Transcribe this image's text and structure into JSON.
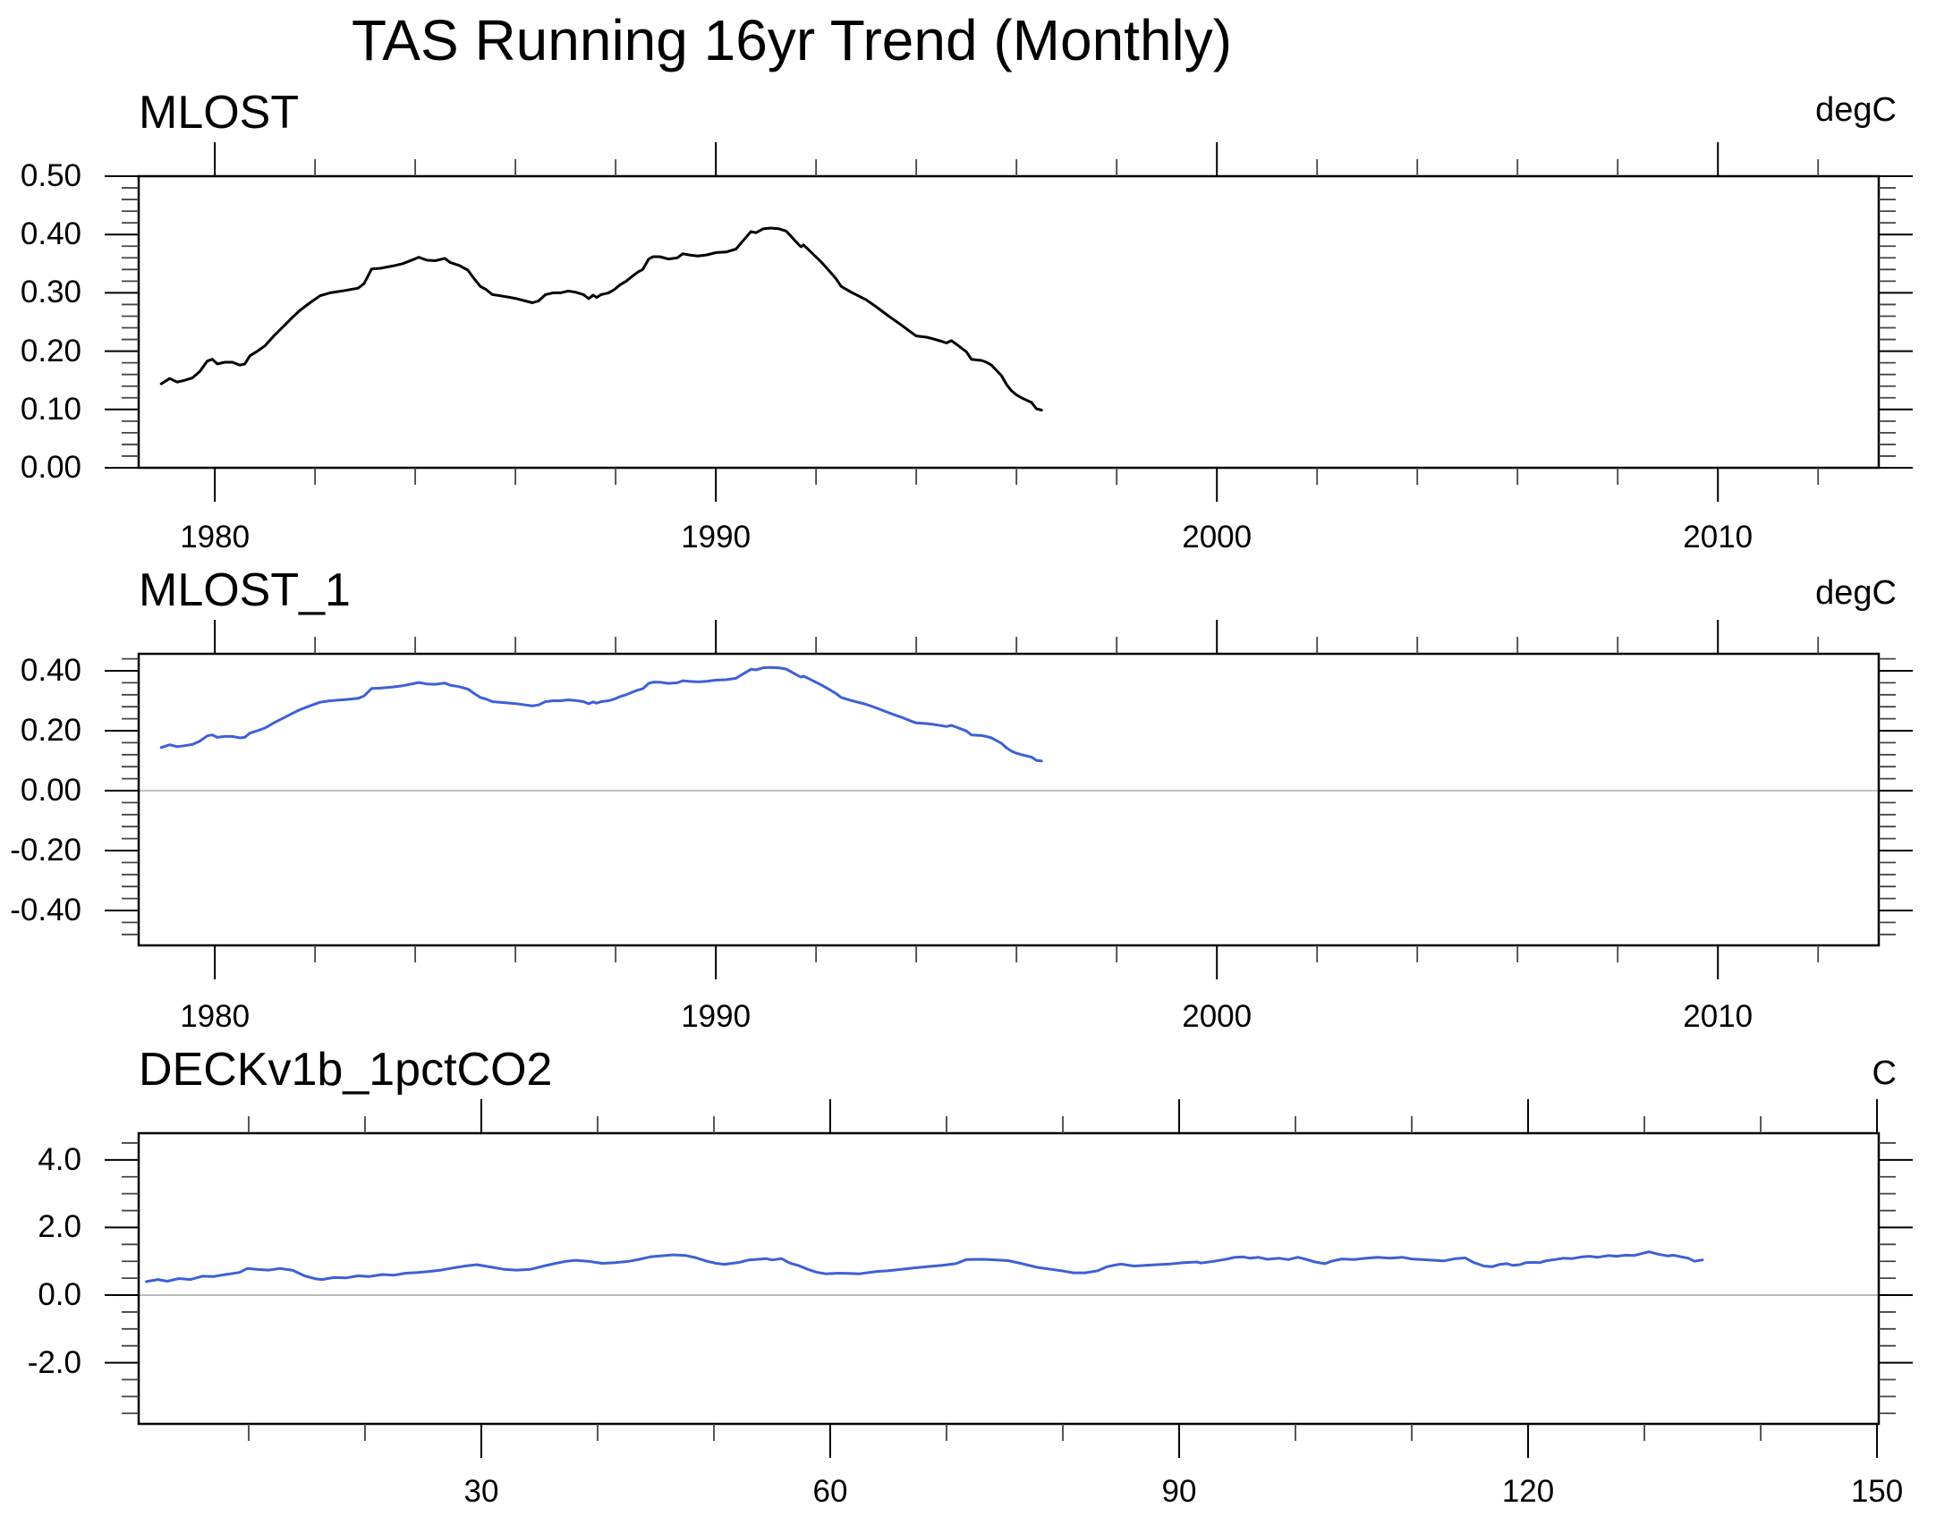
{
  "page_title": "TAS Running 16yr Trend (Monthly)",
  "colors": {
    "black_line": "#000000",
    "blue_line": "#3D60D5",
    "axis": "#000000",
    "minor_tick": "#444444",
    "zero_line": "#ababab"
  },
  "chart_data": [
    {
      "type": "line",
      "title": "MLOST",
      "unit_label": "degC",
      "line_color": "#000000",
      "legend": "none",
      "grid": false,
      "xlim": [
        1978.48,
        2013.21
      ],
      "ylim": [
        0.0,
        0.5
      ],
      "x_major_ticks": [
        1980,
        1990,
        2000,
        2010
      ],
      "x_major_labels": [
        "1980",
        "1990",
        "2000",
        "2010"
      ],
      "x_minor_step": 2,
      "y_major_ticks": [
        0.0,
        0.1,
        0.2,
        0.3,
        0.4,
        0.5
      ],
      "y_major_labels": [
        "0.00",
        "0.10",
        "0.20",
        "0.30",
        "0.40",
        "0.50"
      ],
      "y_minor_step": 0.02,
      "zero_line": false,
      "x": [
        1978.93,
        1979.1,
        1979.25,
        1979.4,
        1979.55,
        1979.7,
        1979.85,
        1979.95,
        1980.05,
        1980.2,
        1980.35,
        1980.5,
        1980.6,
        1980.7,
        1980.85,
        1981.0,
        1981.2,
        1981.4,
        1981.55,
        1981.7,
        1981.9,
        1982.1,
        1982.3,
        1982.6,
        1982.86,
        1982.98,
        1983.13,
        1983.3,
        1983.55,
        1983.75,
        1983.96,
        1984.07,
        1984.23,
        1984.4,
        1984.59,
        1984.7,
        1984.88,
        1985.05,
        1985.18,
        1985.3,
        1985.41,
        1985.54,
        1985.7,
        1985.9,
        1986.02,
        1986.2,
        1986.34,
        1986.46,
        1986.6,
        1986.75,
        1986.9,
        1987.05,
        1987.2,
        1987.36,
        1987.46,
        1987.55,
        1987.62,
        1987.71,
        1987.86,
        1987.98,
        1988.09,
        1988.21,
        1988.34,
        1988.45,
        1988.54,
        1988.66,
        1988.75,
        1988.88,
        1989.05,
        1989.23,
        1989.34,
        1989.46,
        1989.64,
        1989.82,
        1990.0,
        1990.2,
        1990.4,
        1990.55,
        1990.7,
        1990.8,
        1990.95,
        1991.1,
        1991.25,
        1991.4,
        1991.5,
        1991.65,
        1991.7,
        1991.75,
        1991.85,
        1992.1,
        1992.3,
        1992.4,
        1992.5,
        1992.7,
        1993.0,
        1993.2,
        1993.45,
        1993.7,
        1993.9,
        1994.0,
        1994.2,
        1994.3,
        1994.5,
        1994.6,
        1994.7,
        1994.8,
        1995.0,
        1995.1,
        1995.3,
        1995.4,
        1995.5,
        1995.7,
        1995.8,
        1995.9,
        1996.0,
        1996.1,
        1996.3,
        1996.4,
        1996.5
      ],
      "y": [
        0.144,
        0.153,
        0.147,
        0.15,
        0.154,
        0.165,
        0.183,
        0.186,
        0.178,
        0.181,
        0.181,
        0.176,
        0.178,
        0.192,
        0.2,
        0.209,
        0.228,
        0.245,
        0.258,
        0.27,
        0.283,
        0.295,
        0.3,
        0.304,
        0.308,
        0.316,
        0.341,
        0.342,
        0.346,
        0.35,
        0.357,
        0.361,
        0.356,
        0.355,
        0.359,
        0.352,
        0.347,
        0.339,
        0.324,
        0.311,
        0.306,
        0.297,
        0.295,
        0.292,
        0.29,
        0.286,
        0.283,
        0.286,
        0.297,
        0.3,
        0.3,
        0.303,
        0.301,
        0.297,
        0.29,
        0.296,
        0.292,
        0.297,
        0.3,
        0.306,
        0.314,
        0.32,
        0.329,
        0.336,
        0.34,
        0.358,
        0.362,
        0.362,
        0.358,
        0.36,
        0.367,
        0.365,
        0.363,
        0.365,
        0.369,
        0.37,
        0.375,
        0.39,
        0.405,
        0.403,
        0.41,
        0.411,
        0.41,
        0.406,
        0.397,
        0.383,
        0.379,
        0.382,
        0.374,
        0.353,
        0.334,
        0.324,
        0.311,
        0.301,
        0.288,
        0.276,
        0.26,
        0.245,
        0.232,
        0.226,
        0.224,
        0.222,
        0.217,
        0.214,
        0.218,
        0.212,
        0.199,
        0.186,
        0.184,
        0.181,
        0.176,
        0.158,
        0.143,
        0.132,
        0.125,
        0.12,
        0.112,
        0.101,
        0.099
      ]
    },
    {
      "type": "line",
      "title": "MLOST_1",
      "unit_label": "degC",
      "line_color": "#3D60D5",
      "legend": "none",
      "grid": false,
      "xlim": [
        1978.48,
        2013.21
      ],
      "ylim": [
        -0.5164,
        0.4567
      ],
      "x_major_ticks": [
        1980,
        1990,
        2000,
        2010
      ],
      "x_major_labels": [
        "1980",
        "1990",
        "2000",
        "2010"
      ],
      "x_minor_step": 2,
      "y_major_ticks": [
        -0.4,
        -0.2,
        0.0,
        0.2,
        0.4
      ],
      "y_major_labels": [
        "-0.40",
        "-0.20",
        "0.00",
        "0.20",
        "0.40"
      ],
      "y_minor_step": 0.04,
      "zero_line": true,
      "x": [
        1978.93,
        1979.1,
        1979.25,
        1979.4,
        1979.55,
        1979.7,
        1979.85,
        1979.95,
        1980.05,
        1980.2,
        1980.35,
        1980.5,
        1980.6,
        1980.7,
        1980.85,
        1981.0,
        1981.2,
        1981.4,
        1981.55,
        1981.7,
        1981.9,
        1982.1,
        1982.3,
        1982.6,
        1982.86,
        1982.98,
        1983.13,
        1983.3,
        1983.55,
        1983.75,
        1983.96,
        1984.07,
        1984.23,
        1984.4,
        1984.59,
        1984.7,
        1984.88,
        1985.05,
        1985.18,
        1985.3,
        1985.41,
        1985.54,
        1985.7,
        1985.9,
        1986.02,
        1986.2,
        1986.34,
        1986.46,
        1986.6,
        1986.75,
        1986.9,
        1987.05,
        1987.2,
        1987.36,
        1987.46,
        1987.55,
        1987.62,
        1987.71,
        1987.86,
        1987.98,
        1988.09,
        1988.21,
        1988.34,
        1988.45,
        1988.54,
        1988.66,
        1988.75,
        1988.88,
        1989.05,
        1989.23,
        1989.34,
        1989.46,
        1989.64,
        1989.82,
        1990.0,
        1990.2,
        1990.4,
        1990.55,
        1990.7,
        1990.8,
        1990.95,
        1991.1,
        1991.25,
        1991.4,
        1991.5,
        1991.65,
        1991.7,
        1991.75,
        1991.85,
        1992.1,
        1992.3,
        1992.4,
        1992.5,
        1992.7,
        1993.0,
        1993.2,
        1993.45,
        1993.7,
        1993.9,
        1994.0,
        1994.2,
        1994.3,
        1994.5,
        1994.6,
        1994.7,
        1994.8,
        1995.0,
        1995.1,
        1995.3,
        1995.4,
        1995.5,
        1995.7,
        1995.8,
        1995.9,
        1996.0,
        1996.1,
        1996.3,
        1996.4,
        1996.5
      ],
      "y": [
        0.144,
        0.153,
        0.147,
        0.15,
        0.154,
        0.165,
        0.183,
        0.186,
        0.178,
        0.181,
        0.181,
        0.176,
        0.178,
        0.192,
        0.2,
        0.209,
        0.228,
        0.245,
        0.258,
        0.27,
        0.283,
        0.295,
        0.3,
        0.304,
        0.308,
        0.316,
        0.341,
        0.342,
        0.346,
        0.35,
        0.357,
        0.361,
        0.356,
        0.355,
        0.359,
        0.352,
        0.347,
        0.339,
        0.324,
        0.311,
        0.306,
        0.297,
        0.295,
        0.292,
        0.29,
        0.286,
        0.283,
        0.286,
        0.297,
        0.3,
        0.3,
        0.303,
        0.301,
        0.297,
        0.29,
        0.296,
        0.292,
        0.297,
        0.3,
        0.306,
        0.314,
        0.32,
        0.329,
        0.336,
        0.34,
        0.358,
        0.362,
        0.362,
        0.358,
        0.36,
        0.367,
        0.365,
        0.363,
        0.365,
        0.369,
        0.37,
        0.375,
        0.39,
        0.405,
        0.403,
        0.41,
        0.411,
        0.41,
        0.406,
        0.397,
        0.383,
        0.379,
        0.382,
        0.374,
        0.353,
        0.334,
        0.324,
        0.311,
        0.301,
        0.288,
        0.276,
        0.26,
        0.245,
        0.232,
        0.226,
        0.224,
        0.222,
        0.217,
        0.214,
        0.218,
        0.212,
        0.199,
        0.186,
        0.184,
        0.181,
        0.176,
        0.158,
        0.143,
        0.132,
        0.125,
        0.12,
        0.112,
        0.101,
        0.099
      ]
    },
    {
      "type": "line",
      "title": "DECKv1b_1pctCO2",
      "unit_label": "C",
      "line_color": "#3D60D5",
      "legend": "none",
      "grid": false,
      "xlim": [
        0.54,
        150.15
      ],
      "ylim": [
        -3.81,
        4.79
      ],
      "x_major_ticks": [
        30,
        60,
        90,
        120,
        150
      ],
      "x_major_labels": [
        "30",
        "60",
        "90",
        "120",
        "150"
      ],
      "x_minor_step": 10,
      "y_major_ticks": [
        -2.0,
        0.0,
        2.0,
        4.0
      ],
      "y_major_labels": [
        "-2.0",
        "0.0",
        "2.0",
        "4.0"
      ],
      "y_minor_step": 0.5,
      "zero_line": true,
      "x": [
        1.2,
        2.2,
        3.0,
        4.0,
        5.0,
        6.0,
        7.0,
        8.0,
        9.2,
        9.9,
        10.7,
        11.7,
        12.7,
        13.8,
        14.8,
        15.8,
        16.3,
        17.3,
        18.4,
        19.4,
        20.4,
        21.5,
        22.5,
        23.5,
        24.5,
        25.5,
        26.5,
        27.5,
        28.6,
        29.6,
        31.0,
        32.0,
        33.0,
        34.2,
        35.5,
        36.4,
        37.3,
        38.1,
        39.2,
        40.4,
        41.5,
        42.7,
        43.6,
        44.5,
        45.8,
        46.5,
        47.6,
        48.4,
        49.4,
        50.2,
        50.9,
        52.2,
        53.0,
        53.8,
        54.5,
        55.0,
        55.8,
        56.5,
        57.3,
        58.1,
        58.8,
        59.6,
        60.7,
        61.6,
        62.5,
        64.0,
        65.0,
        66.1,
        67.1,
        68.3,
        69.6,
        70.8,
        71.7,
        73.2,
        74.3,
        75.3,
        76.5,
        77.8,
        78.6,
        79.9,
        80.9,
        81.9,
        83.0,
        83.8,
        84.5,
        85.0,
        86.1,
        87.1,
        88.1,
        89.2,
        90.4,
        91.5,
        91.9,
        93.0,
        94.0,
        94.8,
        95.5,
        96.1,
        96.8,
        97.6,
        98.6,
        99.4,
        100.2,
        100.9,
        101.7,
        102.5,
        103.2,
        104.0,
        105.0,
        106.1,
        107.1,
        108.1,
        109.2,
        110.0,
        111.5,
        112.7,
        113.8,
        114.6,
        115.3,
        116.2,
        116.9,
        117.6,
        118.2,
        118.7,
        119.3,
        119.8,
        120.5,
        121.0,
        121.6,
        122.3,
        123.0,
        123.8,
        124.6,
        125.3,
        126.0,
        126.9,
        127.6,
        128.4,
        129.1,
        129.9,
        130.4,
        131.2,
        132.0,
        132.5,
        133.2,
        133.8,
        134.3,
        135.0
      ],
      "y": [
        0.4,
        0.46,
        0.41,
        0.49,
        0.46,
        0.56,
        0.55,
        0.61,
        0.67,
        0.79,
        0.76,
        0.74,
        0.79,
        0.73,
        0.57,
        0.48,
        0.46,
        0.52,
        0.51,
        0.57,
        0.55,
        0.61,
        0.59,
        0.65,
        0.67,
        0.7,
        0.74,
        0.8,
        0.86,
        0.9,
        0.82,
        0.76,
        0.74,
        0.76,
        0.87,
        0.94,
        1.0,
        1.03,
        1.0,
        0.94,
        0.96,
        1.0,
        1.06,
        1.13,
        1.17,
        1.19,
        1.17,
        1.11,
        1.0,
        0.94,
        0.91,
        0.97,
        1.04,
        1.06,
        1.08,
        1.04,
        1.08,
        0.95,
        0.87,
        0.76,
        0.68,
        0.63,
        0.65,
        0.64,
        0.63,
        0.7,
        0.72,
        0.76,
        0.8,
        0.84,
        0.88,
        0.93,
        1.05,
        1.06,
        1.04,
        1.02,
        0.93,
        0.82,
        0.78,
        0.72,
        0.66,
        0.66,
        0.72,
        0.84,
        0.89,
        0.92,
        0.86,
        0.88,
        0.9,
        0.92,
        0.96,
        0.98,
        0.95,
        1.0,
        1.06,
        1.12,
        1.13,
        1.09,
        1.12,
        1.06,
        1.09,
        1.05,
        1.12,
        1.06,
        0.98,
        0.93,
        1.01,
        1.07,
        1.05,
        1.09,
        1.12,
        1.09,
        1.12,
        1.07,
        1.04,
        1.01,
        1.08,
        1.1,
        0.97,
        0.86,
        0.84,
        0.91,
        0.93,
        0.88,
        0.9,
        0.96,
        0.97,
        0.96,
        1.02,
        1.05,
        1.09,
        1.08,
        1.13,
        1.15,
        1.12,
        1.17,
        1.15,
        1.18,
        1.17,
        1.24,
        1.28,
        1.21,
        1.16,
        1.18,
        1.13,
        1.09,
        1.0,
        1.04
      ]
    }
  ]
}
